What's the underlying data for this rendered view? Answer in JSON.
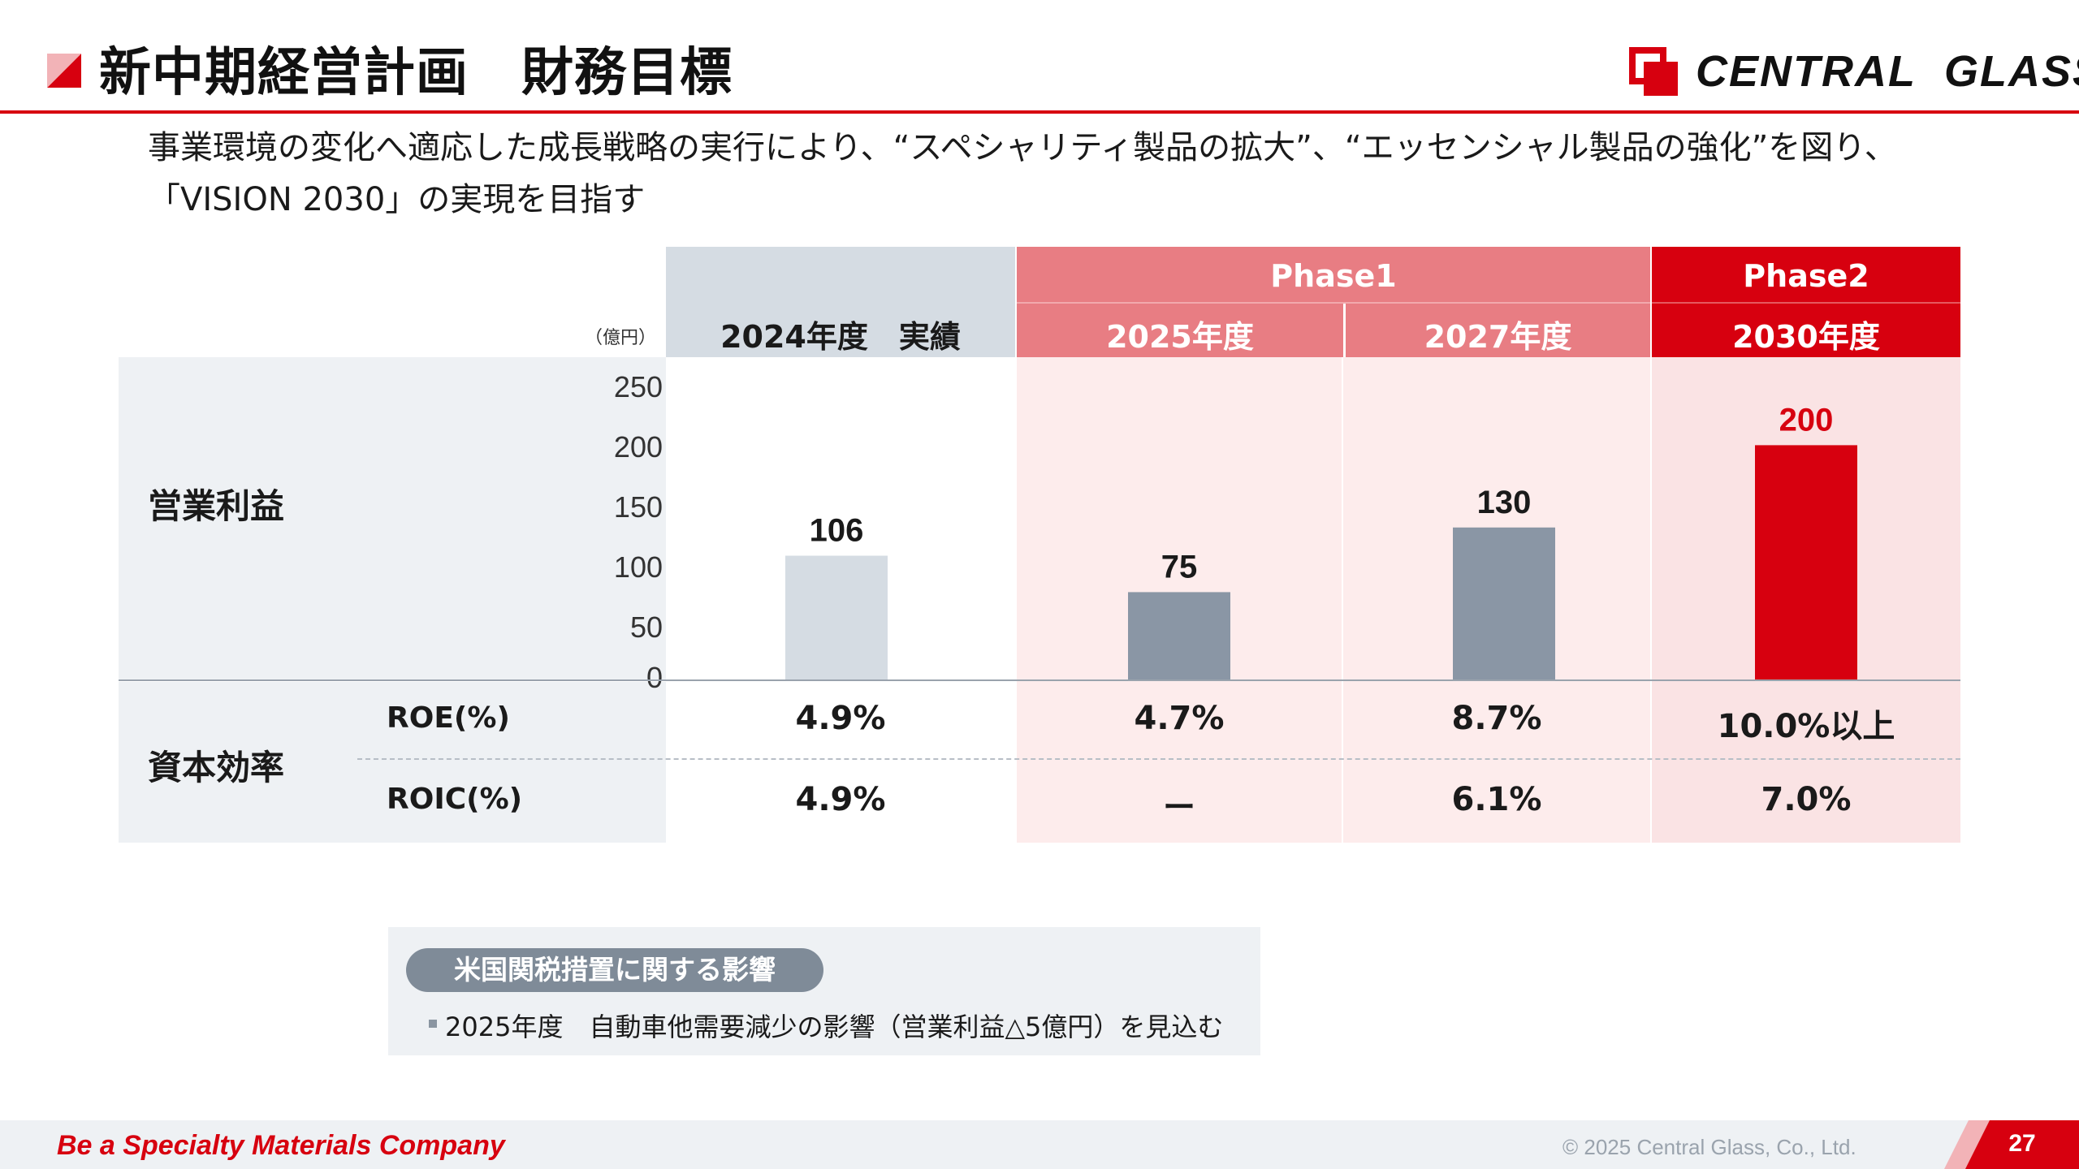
{
  "header": {
    "title": "新中期経営計画　財務目標",
    "logo_text_1": "CENTRAL",
    "logo_text_2": "GLASS",
    "brand_color": "#d7000f"
  },
  "lead": {
    "line1": "事業環境の変化へ適応した成長戦略の実行により、“スペシャリティ製品の拡大”、“エッセンシャル製品の強化”を図り、",
    "line2": "「VISION 2030」の実現を目指す"
  },
  "table": {
    "unit_label": "（億円）",
    "phase1_label": "Phase1",
    "phase2_label": "Phase2",
    "columns": [
      "2024年度　実績",
      "2025年度",
      "2027年度",
      "2030年度"
    ],
    "row_operating_profit": "営業利益",
    "row_capital_efficiency": "資本効率",
    "roe_label": "ROE(%)",
    "roic_label": "ROIC(%)",
    "roe_values": [
      "4.9%",
      "4.7%",
      "8.7%",
      "10.0%以上"
    ],
    "roic_values": [
      "4.9%",
      "ー",
      "6.1%",
      "7.0%"
    ]
  },
  "chart_data": {
    "type": "bar",
    "categories": [
      "2024年度　実績",
      "2025年度",
      "2027年度",
      "2030年度"
    ],
    "values": [
      106,
      75,
      130,
      200
    ],
    "data_labels": [
      "106",
      "75",
      "130",
      "200"
    ],
    "bar_colors": [
      "#d5dce3",
      "#8a96a5",
      "#8a96a5",
      "#d7000f"
    ],
    "label_colors": [
      "#1a1a1a",
      "#1a1a1a",
      "#1a1a1a",
      "#d7000f"
    ],
    "yticks": [
      "250",
      "200",
      "150",
      "100",
      "50",
      "0"
    ],
    "ylim": [
      0,
      250
    ],
    "ylabel": "（億円）",
    "title": "",
    "legend": "none",
    "grid": false
  },
  "note": {
    "pill": "米国関税措置に関する影響",
    "text": "2025年度　自動車他需要減少の影響（営業利益△5億円）を見込む"
  },
  "footer": {
    "tagline": "Be a Specialty Materials Company",
    "copyright": "© 2025 Central Glass, Co., Ltd.",
    "page": "27"
  }
}
